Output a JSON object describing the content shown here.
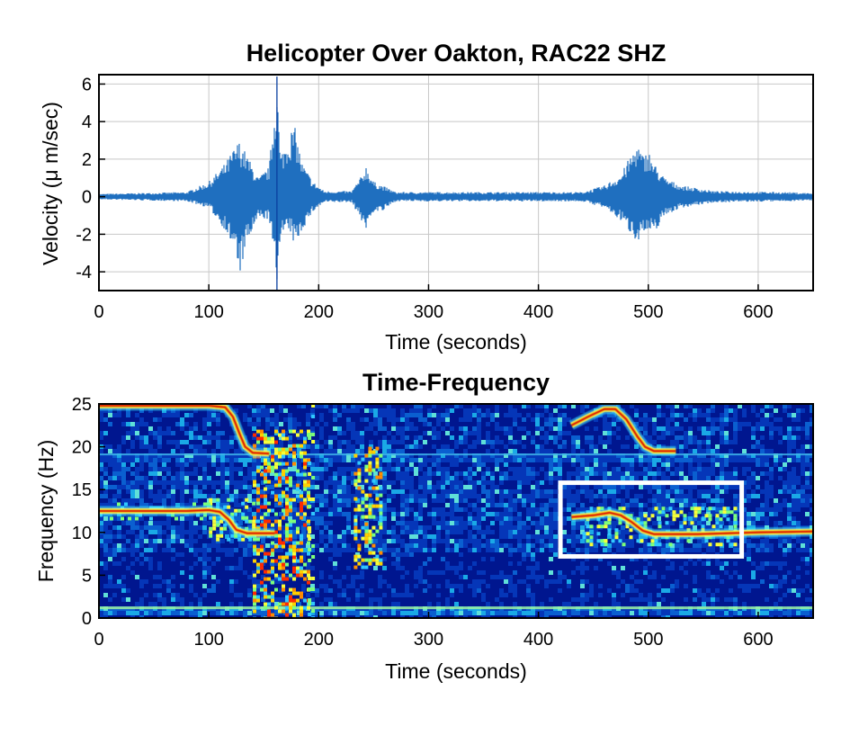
{
  "chart_data": [
    {
      "type": "line",
      "title": "Helicopter Over Oakton, RAC22 SHZ",
      "xlabel": "Time (seconds)",
      "ylabel": "Velocity (μ m/sec)",
      "xlim": [
        0,
        650
      ],
      "ylim": [
        -5,
        6.5
      ],
      "xticks": [
        0,
        100,
        200,
        300,
        400,
        500,
        600
      ],
      "yticks": [
        6,
        4,
        2,
        0,
        -2,
        -4
      ],
      "grid": true,
      "line_color": "#1f6fbf",
      "series": [
        {
          "envelope_points": [
            {
              "x": 0,
              "max": 0.15,
              "min": -0.15
            },
            {
              "x": 80,
              "max": 0.25,
              "min": -0.25
            },
            {
              "x": 100,
              "max": 0.8,
              "min": -0.6
            },
            {
              "x": 115,
              "max": 1.8,
              "min": -1.8
            },
            {
              "x": 125,
              "max": 2.8,
              "min": -3.2
            },
            {
              "x": 128,
              "max": 3.0,
              "min": -4.2
            },
            {
              "x": 135,
              "max": 2.2,
              "min": -2.5
            },
            {
              "x": 145,
              "max": 1.0,
              "min": -1.2
            },
            {
              "x": 155,
              "max": 1.6,
              "min": -1.2
            },
            {
              "x": 162,
              "max": 6.4,
              "min": -4.9
            },
            {
              "x": 165,
              "max": 2.2,
              "min": -2.0
            },
            {
              "x": 175,
              "max": 3.6,
              "min": -2.0
            },
            {
              "x": 178,
              "max": 3.8,
              "min": -2.7
            },
            {
              "x": 185,
              "max": 1.8,
              "min": -1.8
            },
            {
              "x": 195,
              "max": 0.8,
              "min": -0.8
            },
            {
              "x": 205,
              "max": 0.3,
              "min": -0.3
            },
            {
              "x": 230,
              "max": 0.3,
              "min": -0.3
            },
            {
              "x": 240,
              "max": 1.2,
              "min": -1.4
            },
            {
              "x": 243,
              "max": 1.7,
              "min": -1.8
            },
            {
              "x": 250,
              "max": 0.8,
              "min": -0.8
            },
            {
              "x": 258,
              "max": 0.6,
              "min": -0.8
            },
            {
              "x": 270,
              "max": 0.25,
              "min": -0.25
            },
            {
              "x": 440,
              "max": 0.25,
              "min": -0.25
            },
            {
              "x": 460,
              "max": 0.6,
              "min": -0.6
            },
            {
              "x": 475,
              "max": 1.2,
              "min": -1.3
            },
            {
              "x": 490,
              "max": 2.9,
              "min": -2.4
            },
            {
              "x": 495,
              "max": 2.2,
              "min": -1.9
            },
            {
              "x": 500,
              "max": 2.5,
              "min": -2.1
            },
            {
              "x": 505,
              "max": 1.8,
              "min": -2.0
            },
            {
              "x": 515,
              "max": 1.0,
              "min": -1.0
            },
            {
              "x": 530,
              "max": 0.6,
              "min": -0.6
            },
            {
              "x": 560,
              "max": 0.3,
              "min": -0.3
            },
            {
              "x": 620,
              "max": 0.25,
              "min": -0.25
            },
            {
              "x": 650,
              "max": 0.2,
              "min": -0.2
            }
          ]
        }
      ]
    },
    {
      "type": "heatmap",
      "title": "Time-Frequency",
      "xlabel": "Time (seconds)",
      "ylabel": "Frequency (Hz)",
      "xlim": [
        0,
        650
      ],
      "ylim": [
        0,
        25
      ],
      "xticks": [
        0,
        100,
        200,
        300,
        400,
        500,
        600
      ],
      "yticks": [
        25,
        20,
        15,
        10,
        5,
        0
      ],
      "colormap": "jet",
      "tracks": [
        {
          "points": [
            [
              0,
              24.8
            ],
            [
              100,
              24.8
            ],
            [
              115,
              24.6
            ],
            [
              122,
              23.5
            ],
            [
              128,
              21.5
            ],
            [
              133,
              20.0
            ],
            [
              140,
              19.3
            ],
            [
              155,
              19.2
            ]
          ]
        },
        {
          "points": [
            [
              0,
              12.5
            ],
            [
              80,
              12.5
            ],
            [
              100,
              12.6
            ],
            [
              110,
              12.4
            ],
            [
              118,
              11.5
            ],
            [
              125,
              10.3
            ],
            [
              135,
              9.9
            ],
            [
              160,
              9.9
            ]
          ]
        },
        {
          "points": [
            [
              430,
              22.5
            ],
            [
              445,
              23.5
            ],
            [
              460,
              24.4
            ],
            [
              470,
              24.4
            ],
            [
              480,
              23.2
            ],
            [
              490,
              21.2
            ],
            [
              497,
              20.0
            ],
            [
              505,
              19.5
            ],
            [
              525,
              19.5
            ]
          ]
        },
        {
          "points": [
            [
              430,
              11.8
            ],
            [
              450,
              12.0
            ],
            [
              465,
              12.3
            ],
            [
              475,
              12.0
            ],
            [
              485,
              11.2
            ],
            [
              495,
              10.2
            ],
            [
              505,
              9.8
            ],
            [
              545,
              9.8
            ],
            [
              600,
              10.0
            ],
            [
              650,
              10.1
            ]
          ]
        }
      ],
      "annotation_box": {
        "t": [
          420,
          585
        ],
        "f": [
          7.2,
          15.8
        ],
        "color": "#ffffff"
      }
    }
  ]
}
